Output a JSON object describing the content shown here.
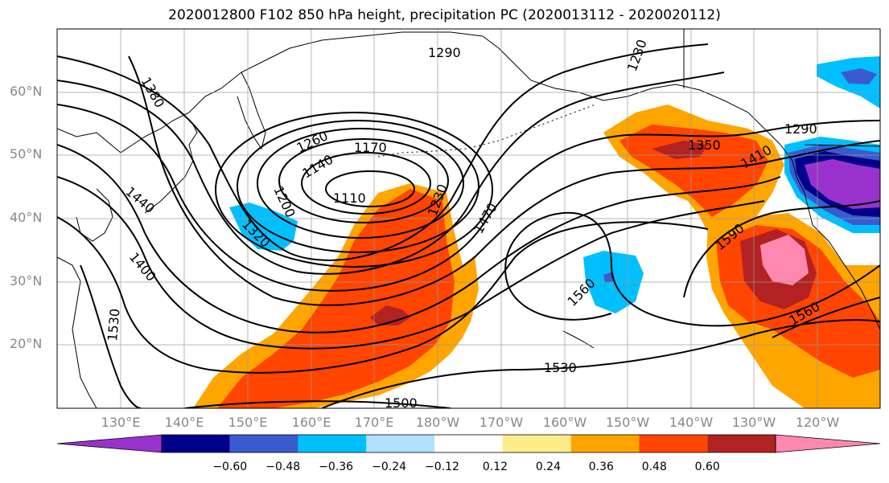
{
  "title": "2020012800 F102 850 hPa height, precipitation PC (2020013112 - 2020020112)",
  "latitude_labels": [
    "60°N",
    "50°N",
    "40°N",
    "30°N",
    "20°N"
  ],
  "longitude_labels": [
    "130°E",
    "140°E",
    "150°E",
    "160°E",
    "170°E",
    "180°W",
    "170°W",
    "160°W",
    "150°W",
    "140°W",
    "130°W",
    "120°W"
  ],
  "contour_labels": [
    "1290",
    "1230",
    "1380",
    "1260",
    "1170",
    "1140",
    "1110",
    "1200",
    "1230",
    "1320",
    "1440",
    "1400",
    "1470",
    "1350",
    "1290",
    "1410",
    "1590",
    "1560",
    "1560",
    "1530",
    "1530",
    "1500"
  ],
  "colorbar": {
    "ticks": [
      "−0.60",
      "−0.48",
      "−0.36",
      "−0.24",
      "−0.12",
      "0.12",
      "0.24",
      "0.36",
      "0.48",
      "0.60"
    ],
    "colors": [
      "#9932cc",
      "#00008b",
      "#3a5bcf",
      "#00bfff",
      "#b0e2ff",
      "#ffffff",
      "#ffec8b",
      "#ffa500",
      "#ff4500",
      "#b22222",
      "#ff88b0"
    ]
  }
}
